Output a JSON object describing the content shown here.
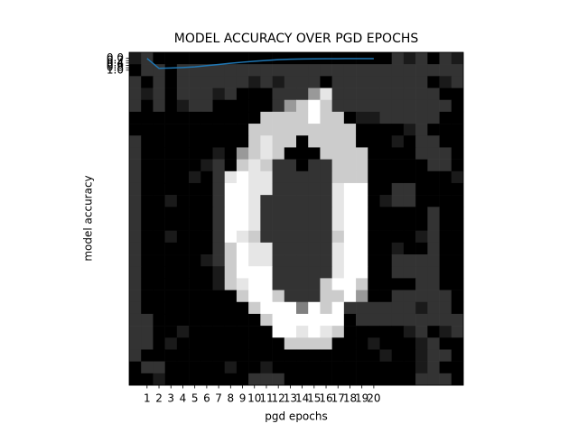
{
  "chart_data": {
    "type": "line",
    "title": "MODEL ACCURACY OVER PGD EPOCHS",
    "xlabel": "pgd epochs",
    "ylabel": "model accuracy",
    "x": [
      1,
      2,
      3,
      4,
      5,
      6,
      7,
      8,
      9,
      10,
      11,
      12,
      13,
      14,
      15,
      16,
      17,
      18,
      19,
      20
    ],
    "values": [
      0.02,
      0.85,
      0.82,
      0.78,
      0.72,
      0.62,
      0.52,
      0.42,
      0.33,
      0.25,
      0.18,
      0.12,
      0.08,
      0.06,
      0.05,
      0.04,
      0.04,
      0.03,
      0.03,
      0.03
    ],
    "color": "#1f77b4",
    "xlim": [
      -0.5,
      27.5
    ],
    "ylim": [
      27.5,
      -0.5
    ],
    "xticks": [
      1,
      2,
      3,
      4,
      5,
      6,
      7,
      8,
      9,
      10,
      11,
      12,
      13,
      14,
      15,
      16,
      17,
      18,
      19,
      20
    ],
    "yticks": [
      {
        "value": 0,
        "label": "0.0"
      },
      {
        "value": 0.2,
        "label": "0.2"
      },
      {
        "value": 0.4,
        "label": "0.4"
      },
      {
        "value": 0.6,
        "label": "0.6"
      },
      {
        "value": 0.8,
        "label": "0.8"
      },
      {
        "value": 1,
        "label": "1.0"
      }
    ],
    "image": [
      [
        0.1,
        0.2,
        0,
        0,
        0,
        0,
        0,
        0,
        0,
        0,
        0,
        0,
        0,
        0,
        0,
        0,
        0,
        0,
        0,
        0,
        0,
        0,
        0.2,
        0.1,
        0.2,
        0,
        0.2,
        0.1
      ],
      [
        0,
        0.2,
        0.2,
        0,
        0.2,
        0.2,
        0.2,
        0.2,
        0.2,
        0.2,
        0.2,
        0.2,
        0.2,
        0.2,
        0.2,
        0.2,
        0.2,
        0.2,
        0.2,
        0.2,
        0.2,
        0.2,
        0.2,
        0.2,
        0.2,
        0.2,
        0.2,
        0.2
      ],
      [
        0.2,
        0,
        0.2,
        0,
        0.2,
        0.2,
        0.2,
        0.2,
        0.2,
        0.2,
        0.1,
        0.2,
        0.1,
        0.2,
        0.2,
        0.2,
        0,
        0.2,
        0.2,
        0.2,
        0.2,
        0.2,
        0.2,
        0.2,
        0.2,
        0,
        0.1,
        0.2
      ],
      [
        0.2,
        0.1,
        0.2,
        0,
        0.2,
        0.2,
        0.2,
        0.1,
        0.2,
        0,
        0,
        0,
        0.2,
        0.2,
        0.2,
        0.6,
        0.9,
        0.2,
        0.2,
        0.2,
        0.2,
        0.2,
        0.2,
        0.2,
        0.2,
        0.2,
        0,
        0
      ],
      [
        0.2,
        0,
        0.2,
        0,
        0.1,
        0.2,
        0.2,
        0,
        0,
        0,
        0,
        0,
        0.2,
        0.6,
        0.8,
        1,
        0.8,
        0.2,
        0.2,
        0.2,
        0.2,
        0.2,
        0.2,
        0.2,
        0.2,
        0.2,
        0.2,
        0
      ],
      [
        0,
        0,
        0,
        0,
        0,
        0,
        0,
        0,
        0,
        0,
        0,
        0.8,
        0.8,
        0.8,
        0.8,
        1,
        0.8,
        0.8,
        0,
        0.1,
        0.1,
        0.2,
        0.2,
        0.2,
        0.2,
        0.2,
        0,
        0
      ],
      [
        0,
        0,
        0,
        0,
        0,
        0,
        0,
        0,
        0,
        0,
        0.8,
        0.8,
        0.8,
        0.8,
        0.8,
        0.8,
        0.8,
        0.8,
        0.8,
        0,
        0,
        0,
        0,
        0.1,
        0.2,
        0,
        0,
        0
      ],
      [
        0.2,
        0,
        0,
        0,
        0,
        0,
        0,
        0,
        0,
        0,
        0.8,
        0.9,
        0.8,
        0.8,
        0,
        0.8,
        0.8,
        0.8,
        0.8,
        0,
        0,
        0,
        0.1,
        0,
        0.2,
        0.2,
        0,
        0
      ],
      [
        0.2,
        0,
        0,
        0,
        0,
        0,
        0,
        0.1,
        0,
        0.6,
        0.8,
        0.9,
        0.8,
        0,
        0,
        0,
        0.8,
        0.8,
        0.8,
        0.8,
        0,
        0,
        0,
        0,
        0.2,
        0.2,
        0.2,
        0
      ],
      [
        0.2,
        0,
        0,
        0,
        0,
        0,
        0.1,
        0.2,
        0,
        0.8,
        0.9,
        0.8,
        0.2,
        0.2,
        0,
        0.2,
        0.2,
        0.8,
        0.8,
        0.8,
        0,
        0,
        0,
        0,
        0,
        0.2,
        0.2,
        0
      ],
      [
        0.2,
        0,
        0,
        0,
        0,
        0.1,
        0,
        0.2,
        0.9,
        1,
        0.9,
        0.9,
        0.2,
        0.2,
        0.2,
        0.2,
        0.2,
        0.8,
        0.8,
        0.8,
        0,
        0,
        0,
        0,
        0,
        0,
        0,
        0.1
      ],
      [
        0.2,
        0,
        0,
        0,
        0,
        0,
        0,
        0.2,
        1,
        1,
        0.9,
        0.9,
        0.2,
        0.2,
        0.2,
        0.2,
        0.2,
        0.9,
        1,
        1,
        0,
        0,
        0.2,
        0.2,
        0,
        0,
        0,
        0
      ],
      [
        0.2,
        0,
        0,
        0.1,
        0,
        0,
        0,
        0.2,
        1,
        1,
        0.9,
        0.2,
        0.2,
        0.2,
        0.2,
        0.2,
        0.2,
        0.9,
        1,
        1,
        0,
        0.1,
        0.2,
        0.2,
        0,
        0,
        0,
        0
      ],
      [
        0.2,
        0,
        0,
        0,
        0,
        0,
        0,
        0.2,
        1,
        1,
        0.9,
        0.2,
        0.2,
        0.2,
        0.2,
        0.2,
        0.2,
        0.9,
        1,
        1,
        0,
        0,
        0,
        0,
        0,
        0.2,
        0,
        0
      ],
      [
        0.2,
        0,
        0,
        0,
        0,
        0,
        0,
        0.2,
        1,
        1,
        0.9,
        0.2,
        0.2,
        0.2,
        0.2,
        0.2,
        0.2,
        0.9,
        1,
        1,
        0,
        0,
        0,
        0,
        0,
        0.2,
        0,
        0
      ],
      [
        0.2,
        0,
        0,
        0.1,
        0,
        0,
        0,
        0.2,
        1,
        0.9,
        0.8,
        0.2,
        0.2,
        0.2,
        0.2,
        0.2,
        0.2,
        0.8,
        1,
        1,
        0,
        0,
        0,
        0,
        0.1,
        0.2,
        0,
        0
      ],
      [
        0.2,
        0,
        0,
        0,
        0,
        0,
        0,
        0.2,
        0.8,
        1,
        0.9,
        0.9,
        0.2,
        0.2,
        0.2,
        0.2,
        0.2,
        0.9,
        1,
        1,
        0,
        0,
        0.1,
        0,
        0,
        0.2,
        0,
        0
      ],
      [
        0.2,
        0,
        0,
        0,
        0,
        0,
        0.1,
        0.2,
        0.8,
        1,
        0.9,
        0.9,
        0.2,
        0.2,
        0.2,
        0.2,
        0.2,
        0.9,
        1,
        1,
        0,
        0,
        0.2,
        0.2,
        0.2,
        0.2,
        0,
        0
      ],
      [
        0.2,
        0,
        0,
        0,
        0,
        0,
        0,
        0.1,
        0.8,
        1,
        1,
        1,
        0.2,
        0.2,
        0.2,
        0.2,
        0.2,
        0.9,
        1,
        1,
        0,
        0,
        0.2,
        0.2,
        0.2,
        0.2,
        0,
        0
      ],
      [
        0.2,
        0,
        0,
        0,
        0,
        0,
        0,
        0.1,
        0.8,
        0.9,
        1,
        1,
        0.2,
        0.2,
        0.2,
        0.2,
        0.8,
        1,
        1,
        0.8,
        0,
        0,
        0,
        0,
        0.2,
        0.2,
        0,
        0
      ],
      [
        0.2,
        0,
        0,
        0,
        0,
        0,
        0,
        0,
        0,
        0.8,
        1,
        1,
        0.8,
        0.2,
        0.2,
        0.2,
        0.8,
        0.8,
        1,
        0.6,
        0,
        0,
        0.2,
        0.2,
        0.2,
        0.2,
        0.2,
        0
      ],
      [
        0.2,
        0,
        0,
        0,
        0,
        0,
        0,
        0,
        0,
        0,
        0.8,
        1,
        1,
        1,
        0.5,
        1,
        0.8,
        1,
        0.2,
        0.2,
        0.2,
        0.2,
        0.2,
        0.2,
        0.1,
        0.2,
        0.2,
        0
      ],
      [
        0.2,
        0.2,
        0,
        0,
        0,
        0,
        0,
        0,
        0,
        0,
        0,
        0.8,
        1,
        1,
        1,
        1,
        1,
        1,
        0,
        0.2,
        0.2,
        0.2,
        0.2,
        0.2,
        0.2,
        0.2,
        0.2,
        0.2
      ],
      [
        0.2,
        0.2,
        0,
        0,
        0.1,
        0,
        0,
        0,
        0,
        0,
        0,
        0,
        1,
        1,
        0.9,
        1,
        0.9,
        0.8,
        0,
        0,
        0,
        0,
        0,
        0.1,
        0.2,
        0,
        0.1,
        0.2
      ],
      [
        0.2,
        0.2,
        0,
        0.1,
        0,
        0,
        0,
        0,
        0,
        0,
        0,
        0,
        0,
        0.8,
        0.8,
        0.8,
        0.8,
        0,
        0,
        0,
        0.1,
        0,
        0,
        0,
        0.1,
        0.2,
        0,
        0
      ],
      [
        0.2,
        0,
        0,
        0,
        0,
        0,
        0,
        0,
        0,
        0,
        0,
        0,
        0,
        0,
        0,
        0,
        0,
        0,
        0,
        0,
        0,
        0.1,
        0,
        0,
        0.1,
        0.2,
        0.2,
        0
      ],
      [
        0,
        0.2,
        0.2,
        0,
        0,
        0,
        0,
        0,
        0.1,
        0,
        0,
        0.1,
        0,
        0,
        0,
        0,
        0,
        0,
        0,
        0,
        0,
        0,
        0,
        0,
        0.1,
        0.2,
        0,
        0
      ],
      [
        0,
        0,
        0.1,
        0,
        0,
        0,
        0,
        0,
        0,
        0,
        0.2,
        0.2,
        0.2,
        0,
        0,
        0,
        0,
        0,
        0,
        0,
        0,
        0,
        0,
        0,
        0.2,
        0.2,
        0.2,
        0
      ]
    ]
  }
}
